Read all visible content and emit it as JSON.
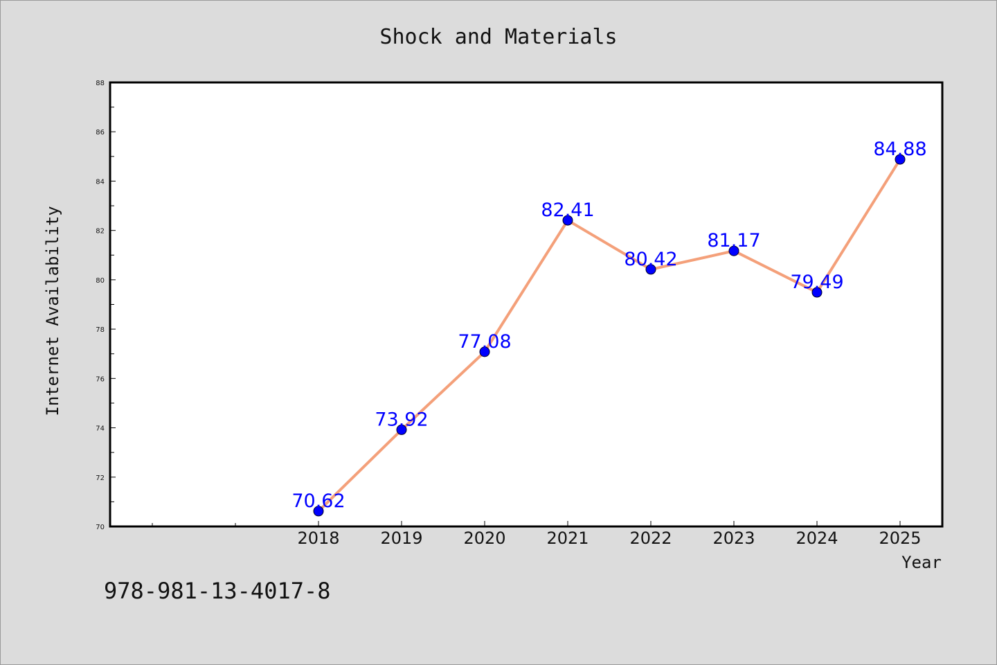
{
  "chart_data": {
    "type": "line",
    "title": "Shock and Materials",
    "xlabel": "Year",
    "ylabel": "Internet Availability",
    "categories": [
      "2018",
      "2019",
      "2020",
      "2021",
      "2022",
      "2023",
      "2024",
      "2025"
    ],
    "values": [
      70.62,
      73.92,
      77.08,
      82.41,
      80.42,
      81.17,
      79.49,
      84.88
    ],
    "value_labels": [
      "70.62",
      "73.92",
      "77.08",
      "82.41",
      "80.42",
      "81.17",
      "79.49",
      "84.88"
    ],
    "ylim": [
      70,
      88
    ],
    "yticks": [
      "70",
      "72",
      "74",
      "76",
      "78",
      "80",
      "82",
      "84",
      "86",
      "88"
    ],
    "grid": false,
    "line_color": "#f4a07a",
    "marker_color": "#0000ff",
    "label_color": "#0000ff"
  },
  "footnote": "978-981-13-4017-8"
}
